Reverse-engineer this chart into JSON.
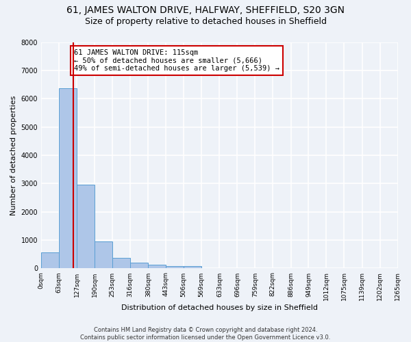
{
  "title1": "61, JAMES WALTON DRIVE, HALFWAY, SHEFFIELD, S20 3GN",
  "title2": "Size of property relative to detached houses in Sheffield",
  "xlabel": "Distribution of detached houses by size in Sheffield",
  "ylabel": "Number of detached properties",
  "bin_edges": [
    0,
    63,
    127,
    190,
    253,
    316,
    380,
    443,
    506,
    569,
    633,
    696,
    759,
    822,
    886,
    949,
    1012,
    1075,
    1139,
    1202,
    1265
  ],
  "bin_labels": [
    "0sqm",
    "63sqm",
    "127sqm",
    "190sqm",
    "253sqm",
    "316sqm",
    "380sqm",
    "443sqm",
    "506sqm",
    "569sqm",
    "633sqm",
    "696sqm",
    "759sqm",
    "822sqm",
    "886sqm",
    "949sqm",
    "1012sqm",
    "1075sqm",
    "1139sqm",
    "1202sqm",
    "1265sqm"
  ],
  "bar_heights": [
    560,
    6380,
    2950,
    960,
    370,
    200,
    120,
    90,
    80,
    0,
    0,
    0,
    0,
    0,
    0,
    0,
    0,
    0,
    0,
    0
  ],
  "bar_color": "#aec6e8",
  "bar_edge_color": "#5a9fd4",
  "property_size": 115,
  "vline_color": "#cc0000",
  "annotation_text": "61 JAMES WALTON DRIVE: 115sqm\n← 50% of detached houses are smaller (5,666)\n49% of semi-detached houses are larger (5,539) →",
  "annotation_box_color": "#ffffff",
  "annotation_box_edge": "#cc0000",
  "ylim": [
    0,
    8000
  ],
  "yticks": [
    0,
    1000,
    2000,
    3000,
    4000,
    5000,
    6000,
    7000,
    8000
  ],
  "footer_text": "Contains HM Land Registry data © Crown copyright and database right 2024.\nContains public sector information licensed under the Open Government Licence v3.0.",
  "bg_color": "#eef2f8",
  "grid_color": "#ffffff",
  "title1_fontsize": 10,
  "title2_fontsize": 9,
  "ylabel_fontsize": 8,
  "xlabel_fontsize": 8,
  "tick_fontsize": 6.5,
  "footer_fontsize": 6,
  "annot_fontsize": 7.5
}
